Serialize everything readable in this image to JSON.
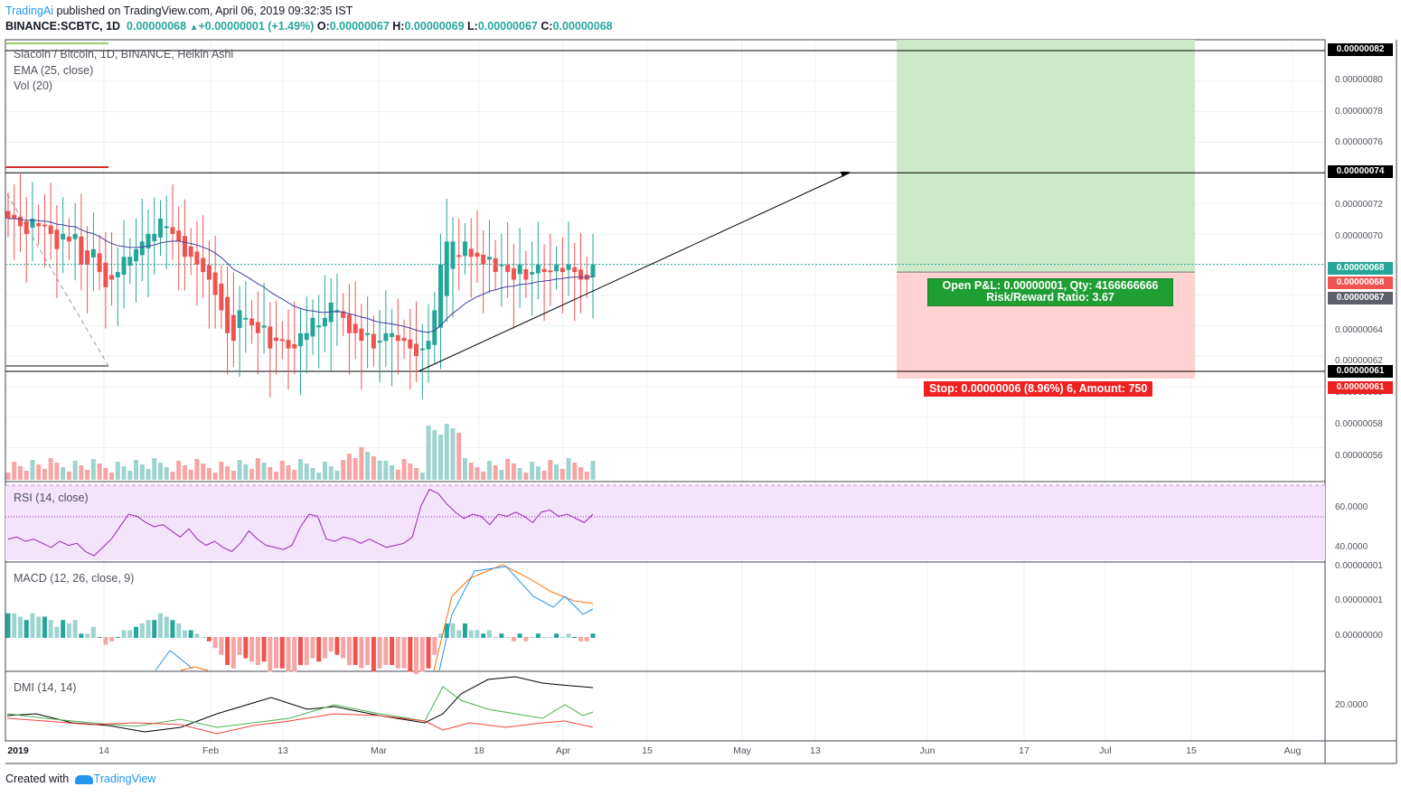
{
  "header": {
    "brand": "TradingAi",
    "published": "published on TradingView.com, April 06, 2019 09:32:35 IST",
    "symbol": "BINANCE:SCBTC, 1D",
    "last": "0.00000068",
    "change": "+0.00000001 (+1.49%)",
    "ohlc": [
      {
        "k": "O:",
        "v": "0.00000067"
      },
      {
        "k": "H:",
        "v": "0.00000069"
      },
      {
        "k": "L:",
        "v": "0.00000067"
      },
      {
        "k": "C:",
        "v": "0.00000068"
      }
    ]
  },
  "legend": {
    "title": "Siacoin / Bitcoin, 1D, BINANCE, Heikin Ashi",
    "ema": "EMA (25, close)",
    "vol": "Vol (20)",
    "rsi": "RSI (14, close)",
    "macd": "MACD (12, 26, close, 9)",
    "dmi": "DMI (14, 14)"
  },
  "position": {
    "pnl_line1": "Open P&L: 0.00000001, Qty: 4166666666",
    "pnl_line2": "Risk/Reward Ratio: 3.67",
    "stop": "Stop: 0.00000006 (8.96%) 6, Amount: 750"
  },
  "price_axis": [
    "0.00000080",
    "0.00000078",
    "0.00000076",
    "0.00000072",
    "0.00000070",
    "0.00000064",
    "0.00000062",
    "0.00000060",
    "0.00000058",
    "0.00000056"
  ],
  "price_tags": [
    {
      "text": "0.00000082",
      "bg": "#000000",
      "fg": "#ffffff"
    },
    {
      "text": "0.00000074",
      "bg": "#000000",
      "fg": "#ffffff"
    },
    {
      "text": "0.00000068",
      "bg": "#26a69a",
      "fg": "#ffffff"
    },
    {
      "text": "0.00000068",
      "bg": "#ef5350",
      "fg": "#ffffff"
    },
    {
      "text": "0.00000067",
      "bg": "#5d606b",
      "fg": "#ffffff"
    },
    {
      "text": "0.00000061",
      "bg": "#000000",
      "fg": "#ffffff"
    },
    {
      "text": "0.00000061",
      "bg": "#ee2020",
      "fg": "#ffffff"
    }
  ],
  "rsi_axis": [
    "60.0000",
    "40.0000"
  ],
  "macd_axis": [
    "0.00000001",
    "0.00000001",
    "0.00000000"
  ],
  "dmi_axis": [
    "20.0000"
  ],
  "x_axis": [
    "2019",
    "14",
    "Feb",
    "13",
    "Mar",
    "18",
    "Apr",
    "15",
    "May",
    "13",
    "Jun",
    "17",
    "Jul",
    "15",
    "Aug"
  ],
  "footer": {
    "created": "Created with",
    "tv": "TradingView"
  },
  "colors": {
    "up": "#26a69a",
    "down": "#ef5350",
    "ema": "#3f3f9f",
    "target": "#c9e9c4",
    "stop": "#ffcfcf",
    "rsi_band": "#f3e3fb",
    "rsi_line": "#9c27b0"
  },
  "chart_data": {
    "type": "candlestick",
    "levels": {
      "target": 8.2e-07,
      "resistance": 7.4e-07,
      "entry": 6.75e-07,
      "stop": 6.1e-07,
      "last": 6.8e-07
    },
    "ylim": [
      5.5e-07,
      8.3e-07
    ],
    "trendline": [
      [
        6.1e-07,
        7.4e-07
      ]
    ],
    "candles_close": [
      7.1,
      7.1,
      7.05,
      7.0,
      7.1,
      7.05,
      7.05,
      7.0,
      6.9,
      7.0,
      6.95,
      7.0,
      6.8,
      6.8,
      6.9,
      6.75,
      6.65,
      6.7,
      6.75,
      6.85,
      6.85,
      6.9,
      6.95,
      7.0,
      7.0,
      7.1,
      7.05,
      7.0,
      6.95,
      6.85,
      6.85,
      6.8,
      6.75,
      6.7,
      6.6,
      6.5,
      6.35,
      6.3,
      6.5,
      6.45,
      6.4,
      6.35,
      6.4,
      6.25,
      6.3,
      6.3,
      6.25,
      6.25,
      6.35,
      6.35,
      6.45,
      6.4,
      6.45,
      6.55,
      6.5,
      6.45,
      6.35,
      6.35,
      6.3,
      6.35,
      6.25,
      6.3,
      6.35,
      6.35,
      6.3,
      6.3,
      6.25,
      6.2,
      6.25,
      6.3,
      6.5,
      6.8,
      6.95,
      6.95,
      6.85,
      6.95,
      6.85,
      6.85,
      6.8,
      6.85,
      6.75,
      6.8,
      6.75,
      6.7,
      6.8,
      6.7,
      6.75,
      6.8,
      6.75,
      6.75,
      6.8,
      6.75,
      6.8,
      6.75,
      6.7,
      6.7,
      6.8
    ],
    "rsi": [
      44,
      45,
      43,
      44,
      42,
      40,
      43,
      41,
      42,
      38,
      36,
      40,
      44,
      50,
      56,
      55,
      52,
      50,
      51,
      48,
      45,
      49,
      44,
      41,
      43,
      40,
      38,
      42,
      48,
      44,
      41,
      40,
      39,
      41,
      50,
      56,
      55,
      44,
      43,
      45,
      44,
      42,
      44,
      42,
      40,
      41,
      42,
      45,
      60,
      68,
      66,
      61,
      57,
      54,
      56,
      55,
      51,
      56,
      55,
      57,
      55,
      52,
      57,
      58,
      55,
      56,
      54,
      52,
      56
    ],
    "series": [
      {
        "name": "EMA (25, close)",
        "values": []
      },
      {
        "name": "Vol (20)",
        "values": []
      }
    ]
  }
}
